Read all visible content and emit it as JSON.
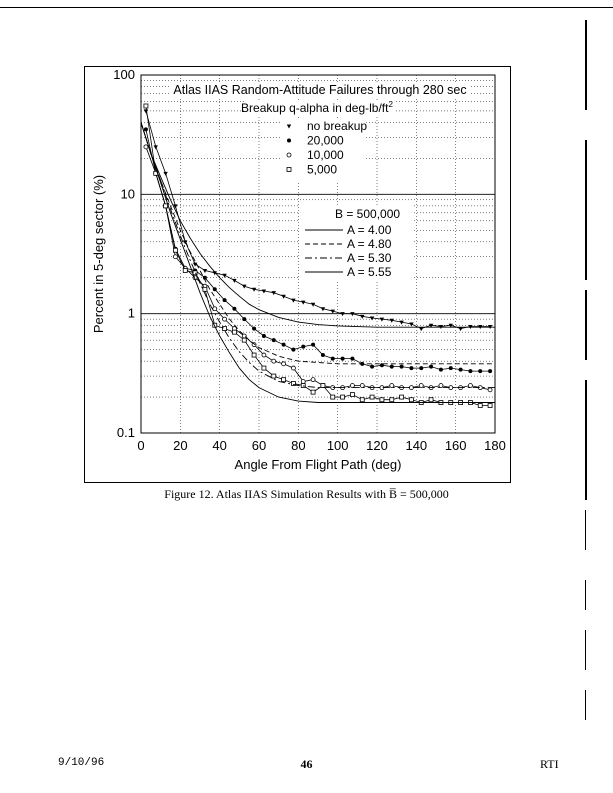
{
  "chart_data": {
    "type": "line",
    "title": "Atlas IIAS Random-Attitude Failures through 280 sec",
    "subtitle": "Breakup q-alpha in deg-lb/ft",
    "subtitle_sup": "2",
    "xlabel": "Angle From Flight Path (deg)",
    "ylabel": "Percent in 5-deg sector (%)",
    "xlim": [
      0,
      180
    ],
    "ylim": [
      0.1,
      100
    ],
    "yscale": "log",
    "x_ticks": [
      "0",
      "20",
      "40",
      "60",
      "80",
      "100",
      "120",
      "140",
      "160",
      "180"
    ],
    "y_ticks": [
      "0.1",
      "1",
      "10",
      "100"
    ],
    "grid": true,
    "legend_symbols": {
      "entries": [
        {
          "label": "no breakup",
          "marker": "triangle"
        },
        {
          "label": "20,000",
          "marker": "filled-circle"
        },
        {
          "label": "10,000",
          "marker": "open-circle"
        },
        {
          "label": "5,000",
          "marker": "open-square"
        }
      ]
    },
    "legend_lines": {
      "header": "B = 500,000",
      "entries": [
        {
          "label": "A = 4.00",
          "dash": "solid"
        },
        {
          "label": "A = 4.80",
          "dash": "dashed"
        },
        {
          "label": "A = 5.30",
          "dash": "dash-dot"
        },
        {
          "label": "A = 5.55",
          "dash": "solid"
        }
      ]
    },
    "series": [
      {
        "name": "no breakup",
        "marker": "triangle",
        "x": [
          2.5,
          7.5,
          12.5,
          17.5,
          22.5,
          27.5,
          32.5,
          37.5,
          42.5,
          47.5,
          52.5,
          57.5,
          62.5,
          67.5,
          72.5,
          77.5,
          82.5,
          87.5,
          92.5,
          97.5,
          102.5,
          107.5,
          112.5,
          117.5,
          122.5,
          127.5,
          132.5,
          137.5,
          142.5,
          147.5,
          152.5,
          157.5,
          162.5,
          167.5,
          172.5,
          177.5
        ],
        "y": [
          50,
          25,
          15,
          8,
          4,
          2.6,
          2.3,
          2.2,
          2.1,
          1.9,
          1.7,
          1.6,
          1.55,
          1.5,
          1.4,
          1.3,
          1.25,
          1.2,
          1.1,
          1.05,
          1.0,
          1.0,
          0.95,
          0.92,
          0.9,
          0.88,
          0.85,
          0.82,
          0.75,
          0.8,
          0.78,
          0.8,
          0.75,
          0.78,
          0.78,
          0.78
        ]
      },
      {
        "name": "20,000",
        "marker": "filled-circle",
        "x": [
          2.5,
          7.5,
          12.5,
          17.5,
          22.5,
          27.5,
          32.5,
          37.5,
          42.5,
          47.5,
          52.5,
          57.5,
          62.5,
          67.5,
          72.5,
          77.5,
          82.5,
          87.5,
          92.5,
          97.5,
          102.5,
          107.5,
          112.5,
          117.5,
          122.5,
          127.5,
          132.5,
          137.5,
          142.5,
          147.5,
          152.5,
          157.5,
          162.5,
          167.5,
          172.5,
          177.5
        ],
        "y": [
          35,
          15,
          8,
          3.5,
          2.4,
          2.3,
          2.0,
          1.6,
          1.3,
          1.1,
          0.9,
          0.75,
          0.65,
          0.6,
          0.55,
          0.5,
          0.53,
          0.55,
          0.45,
          0.42,
          0.42,
          0.42,
          0.38,
          0.36,
          0.37,
          0.36,
          0.36,
          0.35,
          0.35,
          0.36,
          0.34,
          0.35,
          0.34,
          0.33,
          0.33,
          0.33
        ]
      },
      {
        "name": "10,000",
        "marker": "open-circle",
        "x": [
          2.5,
          7.5,
          12.5,
          17.5,
          22.5,
          27.5,
          32.5,
          37.5,
          42.5,
          47.5,
          52.5,
          57.5,
          62.5,
          67.5,
          72.5,
          77.5,
          82.5,
          87.5,
          92.5,
          97.5,
          102.5,
          107.5,
          112.5,
          117.5,
          122.5,
          127.5,
          132.5,
          137.5,
          142.5,
          147.5,
          152.5,
          157.5,
          162.5,
          167.5,
          172.5,
          177.5
        ],
        "y": [
          25,
          15,
          8,
          3.0,
          2.4,
          2.0,
          1.7,
          1.1,
          0.9,
          0.75,
          0.65,
          0.55,
          0.45,
          0.4,
          0.38,
          0.35,
          0.27,
          0.28,
          0.25,
          0.24,
          0.24,
          0.25,
          0.25,
          0.24,
          0.24,
          0.25,
          0.24,
          0.24,
          0.25,
          0.24,
          0.25,
          0.24,
          0.24,
          0.25,
          0.24,
          0.23
        ]
      },
      {
        "name": "5,000",
        "marker": "open-square",
        "x": [
          2.5,
          7.5,
          12.5,
          17.5,
          22.5,
          27.5,
          32.5,
          37.5,
          42.5,
          47.5,
          52.5,
          57.5,
          62.5,
          67.5,
          72.5,
          77.5,
          82.5,
          87.5,
          92.5,
          97.5,
          102.5,
          107.5,
          112.5,
          117.5,
          122.5,
          127.5,
          132.5,
          137.5,
          142.5,
          147.5,
          152.5,
          157.5,
          162.5,
          167.5,
          172.5,
          177.5
        ],
        "y": [
          55,
          15,
          8,
          3.4,
          2.3,
          2.2,
          1.6,
          0.8,
          0.75,
          0.7,
          0.6,
          0.45,
          0.35,
          0.3,
          0.28,
          0.26,
          0.25,
          0.22,
          0.25,
          0.2,
          0.2,
          0.21,
          0.19,
          0.2,
          0.19,
          0.19,
          0.2,
          0.19,
          0.18,
          0.19,
          0.18,
          0.18,
          0.18,
          0.18,
          0.17,
          0.17
        ]
      },
      {
        "name": "A = 4.00",
        "dash": "solid",
        "x": [
          0,
          5,
          10,
          15,
          20,
          25,
          30,
          35,
          40,
          45,
          50,
          55,
          60,
          70,
          80,
          90,
          100,
          120,
          140,
          160,
          180
        ],
        "y": [
          40,
          22,
          14,
          9,
          6,
          4.3,
          3.2,
          2.5,
          2.0,
          1.65,
          1.4,
          1.2,
          1.08,
          0.93,
          0.85,
          0.81,
          0.79,
          0.77,
          0.77,
          0.77,
          0.77
        ]
      },
      {
        "name": "A = 4.80",
        "dash": "dashed",
        "x": [
          0,
          5,
          10,
          15,
          20,
          25,
          30,
          35,
          40,
          45,
          50,
          55,
          60,
          70,
          80,
          90,
          100,
          120,
          140,
          160,
          180
        ],
        "y": [
          40,
          22,
          13,
          8,
          5,
          3.3,
          2.3,
          1.6,
          1.2,
          0.9,
          0.72,
          0.6,
          0.52,
          0.44,
          0.4,
          0.39,
          0.38,
          0.38,
          0.38,
          0.38,
          0.38
        ]
      },
      {
        "name": "A = 5.30",
        "dash": "dash-dot",
        "x": [
          0,
          5,
          10,
          15,
          20,
          25,
          30,
          35,
          40,
          45,
          50,
          55,
          60,
          70,
          80,
          90,
          100,
          120,
          140,
          160,
          180
        ],
        "y": [
          40,
          22,
          13,
          7.5,
          4.5,
          2.8,
          1.8,
          1.2,
          0.85,
          0.62,
          0.48,
          0.39,
          0.33,
          0.27,
          0.25,
          0.24,
          0.24,
          0.24,
          0.24,
          0.24,
          0.24
        ]
      },
      {
        "name": "A = 5.55",
        "dash": "solid",
        "x": [
          0,
          5,
          10,
          15,
          20,
          25,
          30,
          35,
          40,
          45,
          50,
          55,
          60,
          70,
          80,
          90,
          100,
          120,
          140,
          160,
          180
        ],
        "y": [
          40,
          22,
          12.5,
          7,
          4.2,
          2.5,
          1.5,
          0.95,
          0.65,
          0.47,
          0.35,
          0.28,
          0.24,
          0.2,
          0.185,
          0.18,
          0.18,
          0.18,
          0.18,
          0.18,
          0.18
        ]
      }
    ]
  },
  "caption": "Figure 12. Atlas IIAS Simulation Results with B̅ = 500,000",
  "footer": {
    "date": "9/10/96",
    "page": "46",
    "org": "RTI"
  }
}
